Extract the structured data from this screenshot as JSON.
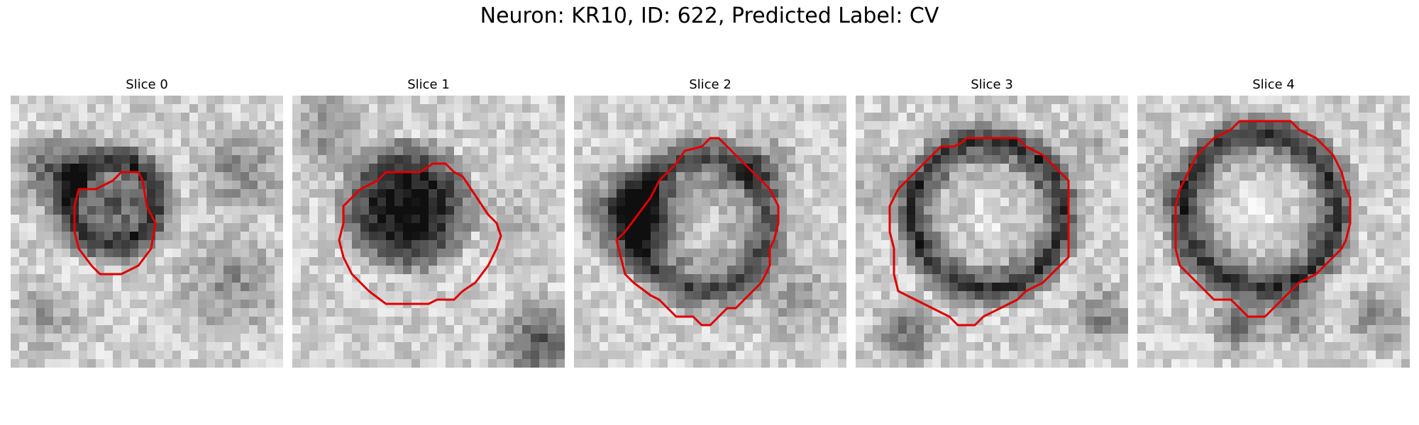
{
  "figure": {
    "title": "Neuron: KR10, ID: 622, Predicted Label: CV"
  },
  "panels": [
    {
      "title": "Slice 0"
    },
    {
      "title": "Slice 1"
    },
    {
      "title": "Slice 2"
    },
    {
      "title": "Slice 3"
    },
    {
      "title": "Slice 4"
    }
  ],
  "colors": {
    "contour": "#e00000",
    "colormap": "grayscale"
  }
}
